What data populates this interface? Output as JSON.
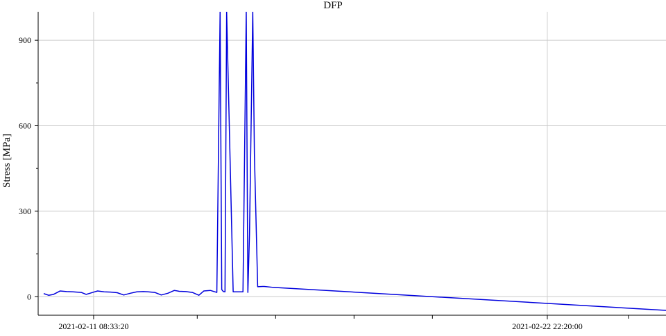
{
  "chart_data": {
    "type": "line",
    "title": "DFP",
    "ylabel": "Stress [MPa]",
    "xlabel": "",
    "y_ticks": [
      0,
      300,
      600,
      900
    ],
    "ylim": [
      -48,
      1000
    ],
    "x_tick_labels": [
      {
        "x": "2021-02-11 08:33:20",
        "label": "2021-02-11 08:33:20"
      },
      {
        "x": "2021-02-22 22:20:00",
        "label": "2021-02-22 22:20:00"
      }
    ],
    "x_minor_ticks": [
      "2021-02-14 00:00:00",
      "2021-02-16 00:00:00",
      "2021-02-18 00:00:00",
      "2021-02-20 00:00:00",
      "2021-02-25 00:00:00"
    ],
    "xlim": [
      "2021-02-10 02:00:00",
      "2021-02-25 23:00:00"
    ],
    "grid": true,
    "line_color": "#0000dd",
    "series": [
      {
        "x": [
          "2021-02-10 02:00:00",
          "2021-02-10 05:00:00",
          "2021-02-10 08:00:00",
          "2021-02-10 12:00:00",
          "2021-02-10 16:00:00",
          "2021-02-10 20:00:00",
          "2021-02-11 01:00:00",
          "2021-02-11 04:00:00",
          "2021-02-11 08:00:00",
          "2021-02-11 11:00:00",
          "2021-02-11 15:00:00",
          "2021-02-11 19:00:00",
          "2021-02-11 23:00:00",
          "2021-02-12 03:00:00",
          "2021-02-12 07:00:00",
          "2021-02-12 11:00:00",
          "2021-02-12 15:00:00",
          "2021-02-12 18:00:00",
          "2021-02-12 22:00:00",
          "2021-02-13 02:00:00",
          "2021-02-13 06:00:00",
          "2021-02-13 10:00:00",
          "2021-02-13 13:00:00",
          "2021-02-13 17:00:00",
          "2021-02-13 21:00:00",
          "2021-02-14 01:00:00",
          "2021-02-14 04:00:00",
          "2021-02-14 08:00:00",
          "2021-02-14 12:00:00",
          "2021-02-14 14:00:00",
          "2021-02-14 15:00:00",
          "2021-02-14 16:00:00",
          "2021-02-14 17:00:00",
          "2021-02-14 18:00:00",
          "2021-02-14 22:00:00",
          "2021-02-15 04:00:00",
          "2021-02-15 06:00:00",
          "2021-02-15 07:00:00",
          "2021-02-15 08:00:00",
          "2021-02-15 10:00:00",
          "2021-02-15 11:00:00",
          "2021-02-15 13:00:00",
          "2021-02-15 16:00:00",
          "2021-02-15 17:00:00",
          "2021-02-15 22:00:00",
          "2021-02-25 23:00:00"
        ],
        "y": [
          11,
          5,
          8,
          20,
          18,
          17,
          15,
          8,
          15,
          20,
          17,
          16,
          14,
          6,
          12,
          17,
          18,
          17,
          15,
          6,
          12,
          22,
          19,
          18,
          15,
          5,
          20,
          22,
          15,
          1000,
          25,
          18,
          17,
          1000,
          17,
          17,
          1000,
          15,
          220,
          1000,
          500,
          35,
          36,
          36,
          33,
          -48
        ]
      }
    ]
  }
}
